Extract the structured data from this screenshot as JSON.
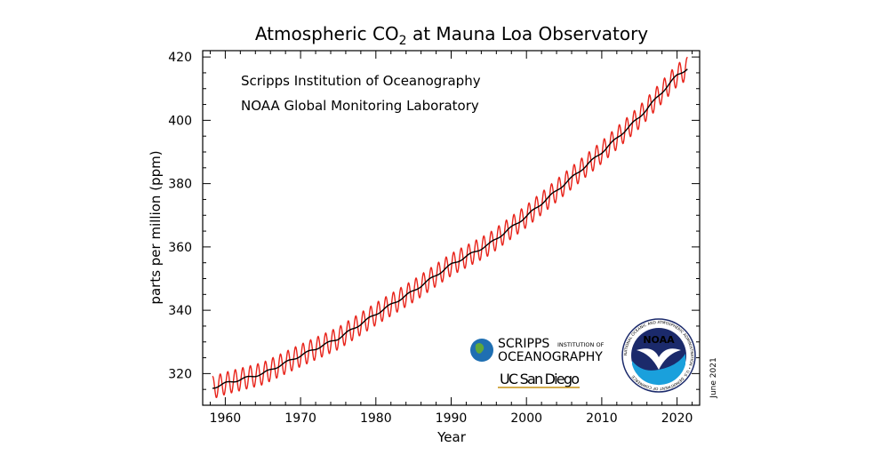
{
  "chart_data": {
    "type": "line",
    "title": "Atmospheric CO",
    "title_subscript": "2",
    "title_suffix": " at Mauna Loa Observatory",
    "xlabel": "Year",
    "ylabel": "parts per million (ppm)",
    "xlim": [
      1957,
      2023
    ],
    "ylim": [
      310,
      422
    ],
    "x_ticks": [
      1960,
      1970,
      1980,
      1990,
      2000,
      2010,
      2020
    ],
    "y_ticks": [
      320,
      340,
      360,
      380,
      400,
      420
    ],
    "grid": false,
    "annotations": [
      "Scripps Institution of Oceanography",
      "NOAA Global Monitoring Laboratory"
    ],
    "date_stamp": "June 2021",
    "series": [
      {
        "role": "monthly-mean",
        "color": "#e8231a",
        "note_seasonal_amplitude_ppm": 3.5,
        "x": [
          1958.3,
          1960,
          1965,
          1970,
          1975,
          1980,
          1985,
          1990,
          1995,
          2000,
          2005,
          2010,
          2015,
          2020,
          2021.4
        ],
        "y": [
          315.5,
          316.9,
          320.0,
          325.7,
          331.1,
          338.8,
          346.1,
          354.4,
          360.8,
          369.7,
          379.8,
          389.9,
          401.0,
          414.2,
          416.4
        ]
      },
      {
        "role": "seasonally-corrected",
        "color": "#000000",
        "x": [
          1958.3,
          1960,
          1965,
          1970,
          1975,
          1980,
          1985,
          1990,
          1995,
          2000,
          2005,
          2010,
          2015,
          2020,
          2021.4
        ],
        "y": [
          315.5,
          316.9,
          320.0,
          325.7,
          331.1,
          338.8,
          346.1,
          354.4,
          360.8,
          369.7,
          379.8,
          389.9,
          401.0,
          414.2,
          416.4
        ]
      }
    ]
  },
  "logos": {
    "scripps": {
      "line1": "SCRIPPS",
      "line1_small": "INSTITUTION OF",
      "line2": "OCEANOGRAPHY",
      "line3": "UC San Diego"
    },
    "noaa": {
      "name": "NOAA",
      "ring_text": "NATIONAL OCEANIC AND ATMOSPHERIC ADMINISTRATION • U.S. DEPARTMENT OF COMMERCE",
      "colors": {
        "navy": "#1b2a6b",
        "blue": "#1aa0dc",
        "white": "#ffffff"
      }
    },
    "ucsd_colors": {
      "navy": "#182b49",
      "gold": "#c69214"
    }
  }
}
